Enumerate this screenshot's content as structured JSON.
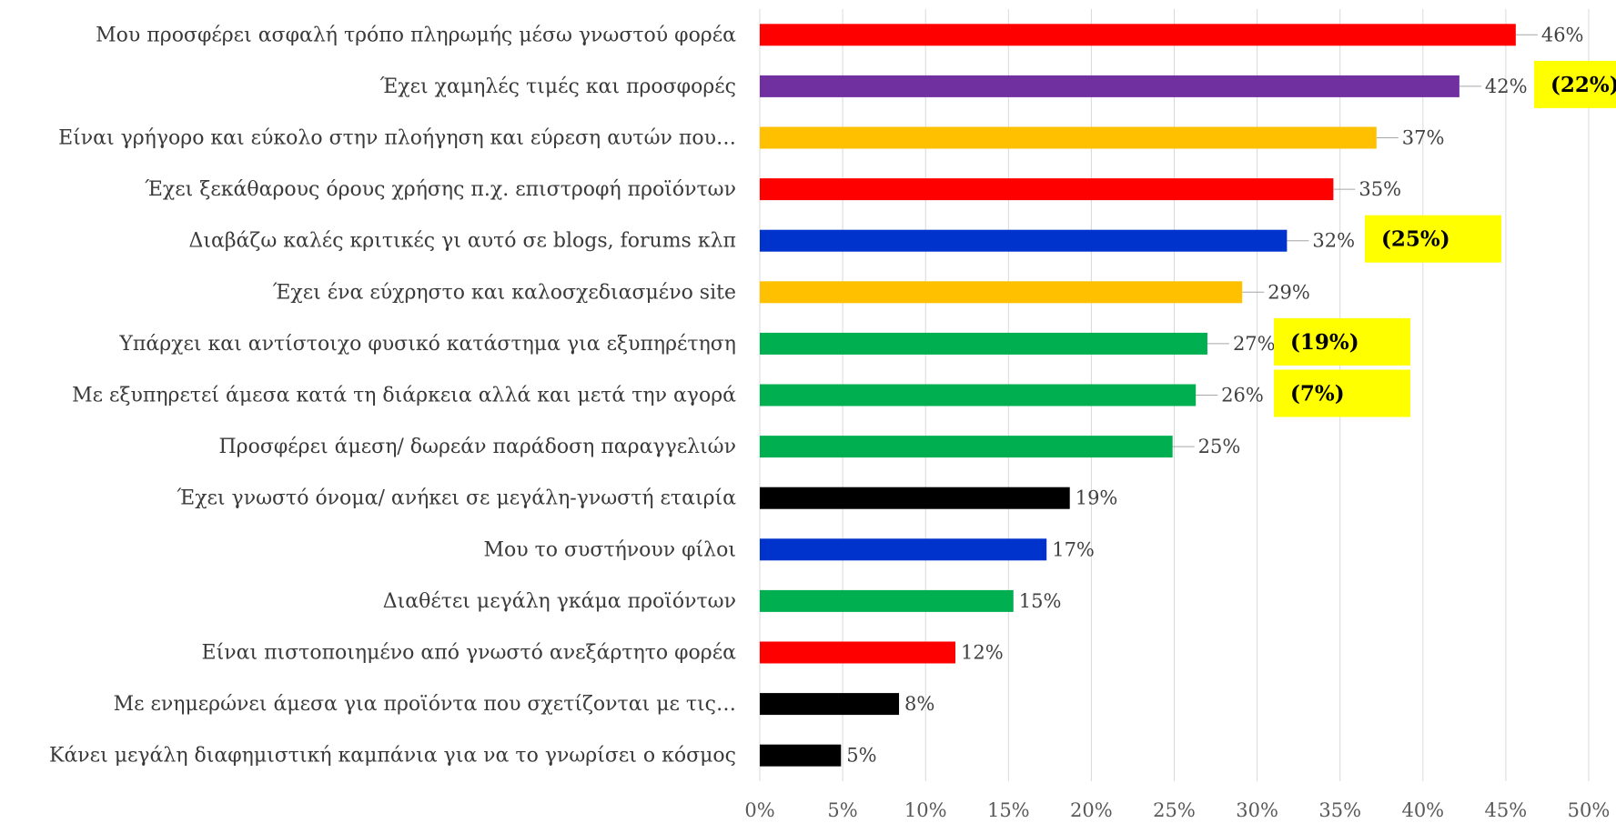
{
  "chart_data": {
    "type": "bar",
    "orientation": "horizontal",
    "categories": [
      "Μου προσφέρει ασφαλή τρόπο πληρωμής μέσω γνωστού φορέα",
      "Έχει χαμηλές τιμές και προσφορές",
      "Είναι γρήγορο και εύκολο στην πλοήγηση και εύρεση αυτών που…",
      "Έχει ξεκάθαρους όρους χρήσης π.χ. επιστροφή προϊόντων",
      "Διαβάζω καλές κριτικές γι αυτό σε blogs, forums κλπ",
      "Έχει ένα εύχρηστο και καλοσχεδιασμένο site",
      "Υπάρχει και αντίστοιχο φυσικό κατάστημα για εξυπηρέτηση",
      "Με εξυπηρετεί άμεσα κατά τη διάρκεια αλλά και μετά την αγορά",
      "Προσφέρει άμεση/ δωρεάν παράδοση παραγγελιών",
      "Έχει γνωστό όνομα/ ανήκει σε μεγάλη-γνωστή εταιρία",
      "Μου το συστήνουν φίλοι",
      "Διαθέτει μεγάλη γκάμα προϊόντων",
      "Είναι πιστοποιημένο από γνωστό ανεξάρτητο φορέα",
      "Με ενημερώνει άμεσα για προϊόντα που σχετίζονται με τις…",
      "Κάνει μεγάλη διαφημιστική καμπάνια για να το γνωρίσει ο κόσμος"
    ],
    "values": [
      45.6,
      42.2,
      37.2,
      34.6,
      31.8,
      29.1,
      27.0,
      26.3,
      24.9,
      18.7,
      17.3,
      15.3,
      11.8,
      8.4,
      4.9
    ],
    "value_labels": [
      "46%",
      "42%",
      "37%",
      "35%",
      "32%",
      "29%",
      "27%",
      "26%",
      "25%",
      "19%",
      "17%",
      "15%",
      "12%",
      "8%",
      "5%"
    ],
    "colors": [
      "#ff0000",
      "#7030a0",
      "#ffc000",
      "#ff0000",
      "#0033cc",
      "#ffc000",
      "#00b050",
      "#00b050",
      "#00b050",
      "#000000",
      "#0033cc",
      "#00b050",
      "#ff0000",
      "#000000",
      "#000000"
    ],
    "xlim": [
      0,
      50
    ],
    "xticks": [
      0,
      5,
      10,
      15,
      20,
      25,
      30,
      35,
      40,
      45,
      50
    ],
    "xtick_labels": [
      "0%",
      "5%",
      "10%",
      "15%",
      "20%",
      "25%",
      "30%",
      "35%",
      "40%",
      "45%",
      "50%"
    ],
    "grid": true,
    "title": "",
    "xlabel": "",
    "ylabel": "",
    "annotations": [
      {
        "text": "(22%)",
        "category_index": 1,
        "background": "#ffff00"
      },
      {
        "text": "(25%)",
        "category_index": 4,
        "background": "#ffff00"
      },
      {
        "text": "(19%)",
        "category_index": 6,
        "background": "#ffff00"
      },
      {
        "text": "(7%)",
        "category_index": 7,
        "background": "#ffff00"
      }
    ]
  }
}
